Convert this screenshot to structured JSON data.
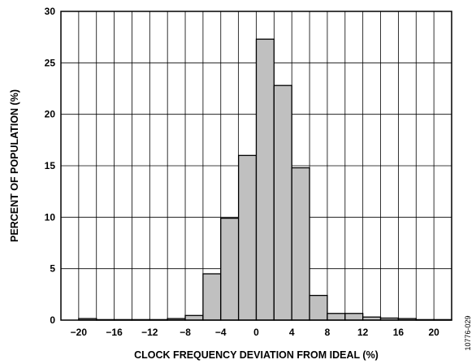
{
  "chart_data": {
    "type": "bar",
    "xlabel": "CLOCK FREQUENCY DEVIATION FROM IDEAL (%)",
    "ylabel": "PERCENT OF POPULATION (%)",
    "xlim": [
      -22,
      22
    ],
    "ylim": [
      0,
      30
    ],
    "xticks": [
      -20,
      -16,
      -12,
      -8,
      -4,
      0,
      4,
      8,
      12,
      16,
      20
    ],
    "xtick_labels": [
      "−20",
      "−16",
      "−12",
      "−8",
      "−4",
      "0",
      "4",
      "8",
      "12",
      "16",
      "20"
    ],
    "yticks": [
      0,
      5,
      10,
      15,
      20,
      25,
      30
    ],
    "ytick_labels": [
      "0",
      "5",
      "10",
      "15",
      "20",
      "25",
      "30"
    ],
    "grid": true,
    "bin_width": 2,
    "bars": [
      {
        "x0": -20,
        "value": 0.15
      },
      {
        "x0": -18,
        "value": 0.05
      },
      {
        "x0": -16,
        "value": 0.05
      },
      {
        "x0": -14,
        "value": 0.05
      },
      {
        "x0": -12,
        "value": 0.05
      },
      {
        "x0": -10,
        "value": 0.15
      },
      {
        "x0": -8,
        "value": 0.45
      },
      {
        "x0": -6,
        "value": 4.5
      },
      {
        "x0": -4,
        "value": 9.9
      },
      {
        "x0": -2,
        "value": 16.0
      },
      {
        "x0": 0,
        "value": 27.3
      },
      {
        "x0": 2,
        "value": 22.8
      },
      {
        "x0": 4,
        "value": 14.8
      },
      {
        "x0": 6,
        "value": 2.4
      },
      {
        "x0": 8,
        "value": 0.65
      },
      {
        "x0": 10,
        "value": 0.65
      },
      {
        "x0": 12,
        "value": 0.3
      },
      {
        "x0": 14,
        "value": 0.2
      },
      {
        "x0": 16,
        "value": 0.15
      },
      {
        "x0": 18,
        "value": 0.05
      },
      {
        "x0": 20,
        "value": 0.05
      }
    ],
    "bar_color": "#c0c0c0",
    "edge_color": "#000000"
  },
  "figure_code": "10776-029"
}
